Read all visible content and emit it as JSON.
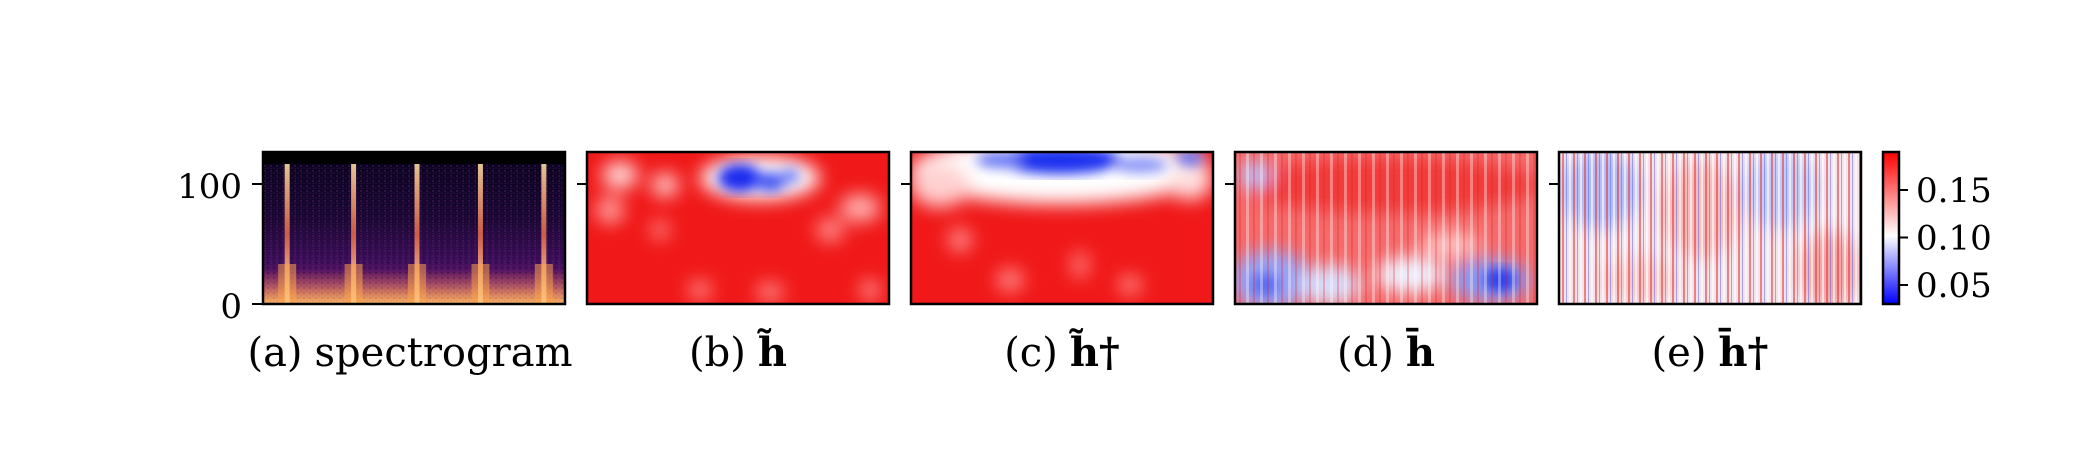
{
  "chart_data": [
    {
      "type": "heatmap",
      "title": "",
      "caption": "(a) spectrogram",
      "caption_prefix": "(a)",
      "caption_symbol": "spectrogram",
      "colormap": "magma",
      "ylim": [
        0,
        128
      ],
      "yticks": [
        0,
        100
      ],
      "ytick_labels": [
        "0",
        "100"
      ],
      "onset_positions": [
        0.08,
        0.3,
        0.51,
        0.72,
        0.93
      ]
    },
    {
      "type": "heatmap",
      "caption": "(b) h̃",
      "caption_prefix": "(b)",
      "caption_symbol": "h̃",
      "colormap": "bwr",
      "mostly": "red",
      "blue_regions": "small blob near top center"
    },
    {
      "type": "heatmap",
      "caption": "(c) h̃†",
      "caption_prefix": "(c)",
      "caption_symbol": "h̃†",
      "colormap": "bwr",
      "mostly": "red",
      "blue_regions": "band along top edge"
    },
    {
      "type": "heatmap",
      "caption": "(d) h̄",
      "caption_prefix": "(d)",
      "caption_symbol": "h̄",
      "colormap": "bwr",
      "mostly": "mixed",
      "blue_regions": "lower portion"
    },
    {
      "type": "heatmap",
      "caption": "(e) h̄†",
      "caption_prefix": "(e)",
      "caption_symbol": "h̄†",
      "colormap": "bwr",
      "mostly": "mixed vertical stripes",
      "blue_regions": "scattered vertical stripes, mostly upper-left"
    }
  ],
  "colorbar": {
    "colormap": "bwr",
    "range": [
      0.03,
      0.19
    ],
    "ticks": [
      0.05,
      0.1,
      0.15
    ],
    "tick_labels": [
      "0.05",
      "0.10",
      "0.15"
    ]
  }
}
